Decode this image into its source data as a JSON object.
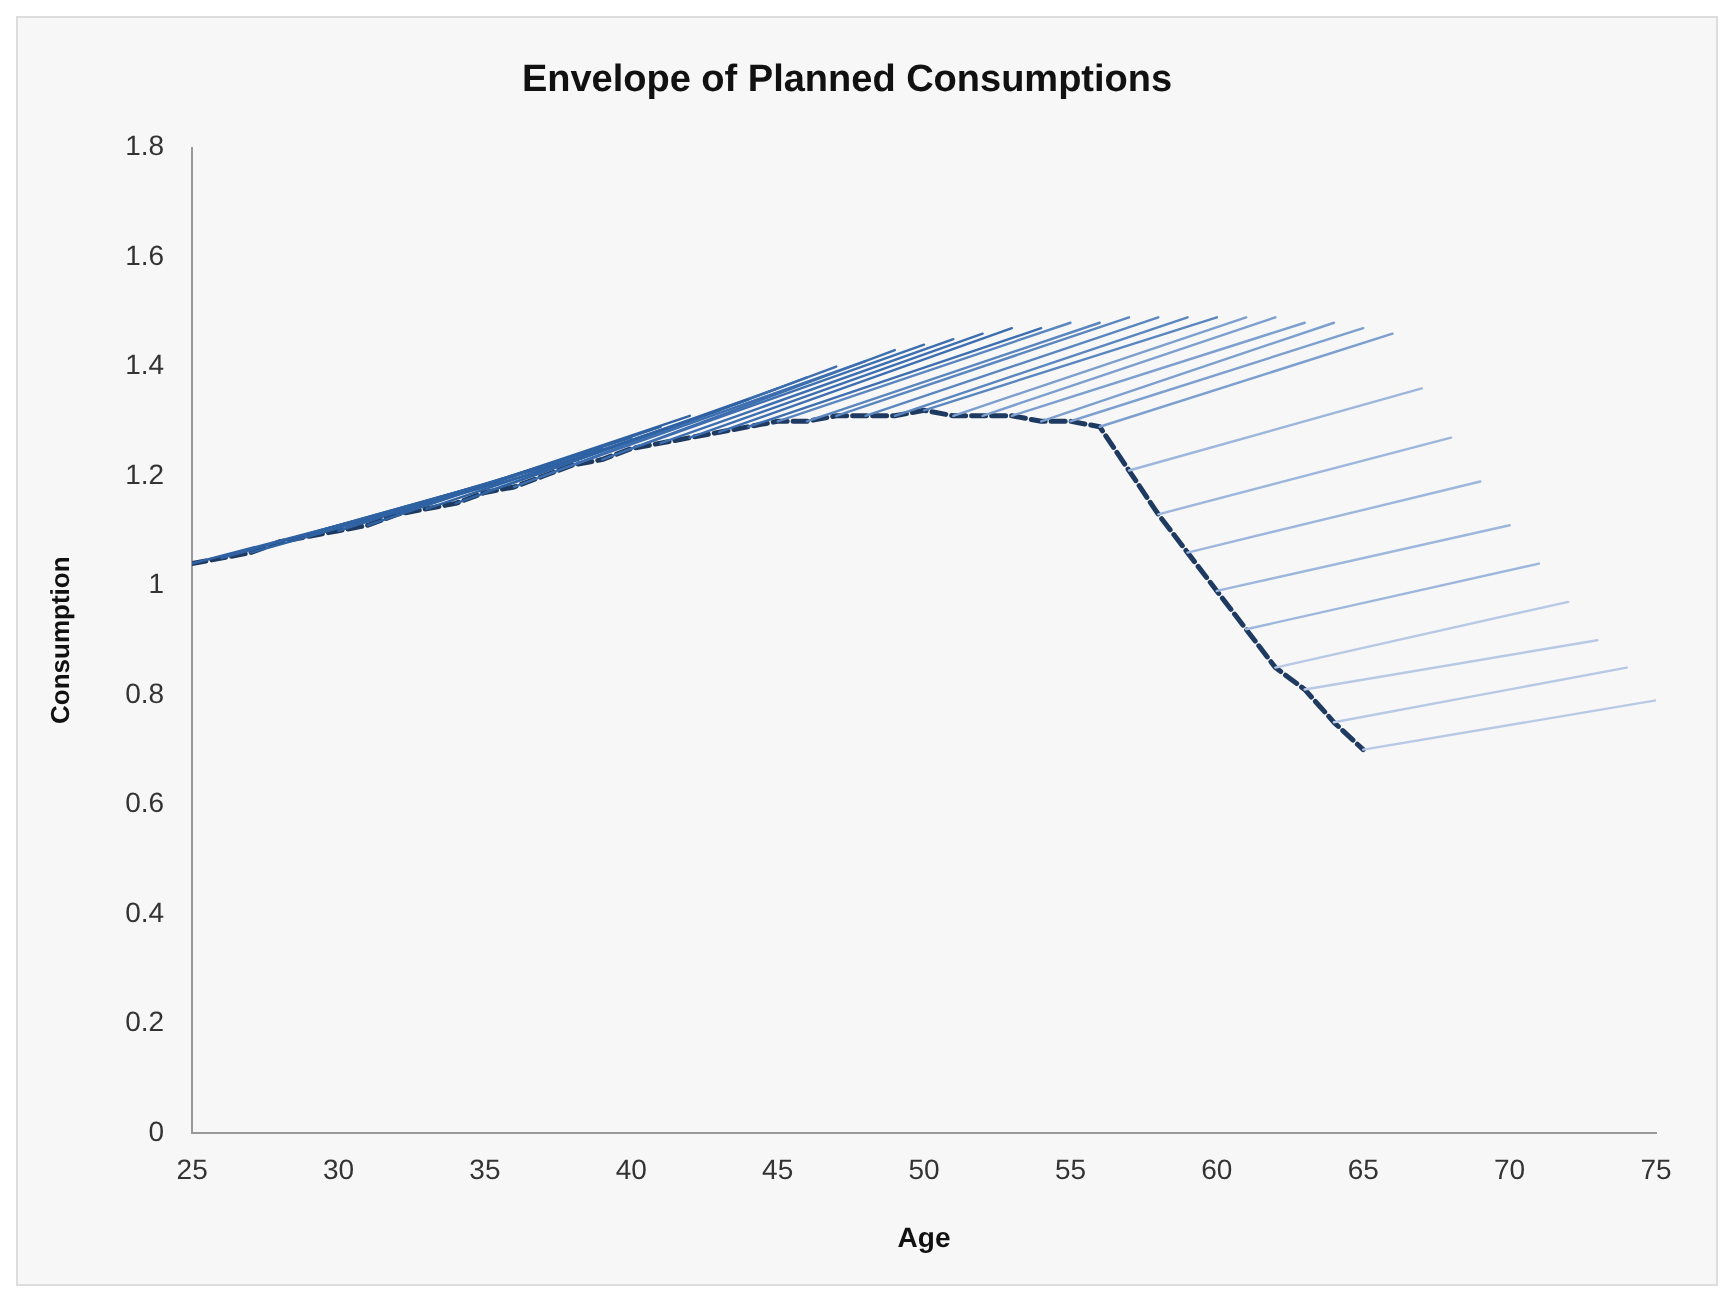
{
  "chart_data": {
    "type": "line",
    "title": "Envelope of Planned Consumptions",
    "xlabel": "Age",
    "ylabel": "Consumption",
    "xlim": [
      25,
      75
    ],
    "xticks": [
      25,
      30,
      35,
      40,
      45,
      50,
      55,
      60,
      65,
      70,
      75
    ],
    "ylim": [
      0,
      1.8
    ],
    "yticks": [
      0,
      0.2,
      0.4,
      0.6,
      0.8,
      1,
      1.2,
      1.4,
      1.6,
      1.8
    ],
    "grid": false,
    "legend": false,
    "marker": "none",
    "series": [
      {
        "color": "#2f62a3",
        "x": [
          25,
          35
        ],
        "values": [
          1.04,
          1.18
        ]
      },
      {
        "color": "#2f62a3",
        "x": [
          26,
          36
        ],
        "values": [
          1.05,
          1.2
        ]
      },
      {
        "color": "#2f62a3",
        "x": [
          27,
          37
        ],
        "values": [
          1.06,
          1.21
        ]
      },
      {
        "color": "#2f62a3",
        "x": [
          28,
          38
        ],
        "values": [
          1.08,
          1.23
        ]
      },
      {
        "color": "#2f62a3",
        "x": [
          29,
          39
        ],
        "values": [
          1.09,
          1.25
        ]
      },
      {
        "color": "#2f62a3",
        "x": [
          30,
          40
        ],
        "values": [
          1.1,
          1.27
        ]
      },
      {
        "color": "#2f62a3",
        "x": [
          31,
          41
        ],
        "values": [
          1.11,
          1.29
        ]
      },
      {
        "color": "#2f62a3",
        "x": [
          32,
          42
        ],
        "values": [
          1.13,
          1.31
        ]
      },
      {
        "color": "#2f62a3",
        "x": [
          33,
          43
        ],
        "values": [
          1.14,
          1.32
        ]
      },
      {
        "color": "#2f62a3",
        "x": [
          34,
          44
        ],
        "values": [
          1.15,
          1.34
        ]
      },
      {
        "color": "#3d6fb0",
        "x": [
          35,
          45
        ],
        "values": [
          1.17,
          1.36
        ]
      },
      {
        "color": "#3d6fb0",
        "x": [
          36,
          46
        ],
        "values": [
          1.18,
          1.38
        ]
      },
      {
        "color": "#3d6fb0",
        "x": [
          37,
          47
        ],
        "values": [
          1.2,
          1.4
        ]
      },
      {
        "color": "#3d6fb0",
        "x": [
          38,
          48
        ],
        "values": [
          1.22,
          1.41
        ]
      },
      {
        "color": "#3d6fb0",
        "x": [
          39,
          49
        ],
        "values": [
          1.23,
          1.43
        ]
      },
      {
        "color": "#3d6fb0",
        "x": [
          40,
          50
        ],
        "values": [
          1.25,
          1.44
        ]
      },
      {
        "color": "#3d6fb0",
        "x": [
          41,
          51
        ],
        "values": [
          1.26,
          1.45
        ]
      },
      {
        "color": "#3d6fb0",
        "x": [
          42,
          52
        ],
        "values": [
          1.27,
          1.46
        ]
      },
      {
        "color": "#3d6fb0",
        "x": [
          43,
          53
        ],
        "values": [
          1.28,
          1.47
        ]
      },
      {
        "color": "#3d6fb0",
        "x": [
          44,
          54
        ],
        "values": [
          1.29,
          1.47
        ]
      },
      {
        "color": "#5a86c0",
        "x": [
          45,
          55
        ],
        "values": [
          1.3,
          1.48
        ]
      },
      {
        "color": "#5a86c0",
        "x": [
          46,
          56
        ],
        "values": [
          1.3,
          1.48
        ]
      },
      {
        "color": "#5a86c0",
        "x": [
          47,
          57
        ],
        "values": [
          1.31,
          1.49
        ]
      },
      {
        "color": "#5a86c0",
        "x": [
          48,
          58
        ],
        "values": [
          1.31,
          1.49
        ]
      },
      {
        "color": "#5a86c0",
        "x": [
          49,
          59
        ],
        "values": [
          1.31,
          1.49
        ]
      },
      {
        "color": "#5a86c0",
        "x": [
          50,
          60
        ],
        "values": [
          1.32,
          1.49
        ]
      },
      {
        "color": "#7c9fcf",
        "x": [
          51,
          61
        ],
        "values": [
          1.31,
          1.49
        ]
      },
      {
        "color": "#7c9fcf",
        "x": [
          52,
          62
        ],
        "values": [
          1.31,
          1.49
        ]
      },
      {
        "color": "#7c9fcf",
        "x": [
          53,
          63
        ],
        "values": [
          1.31,
          1.48
        ]
      },
      {
        "color": "#7c9fcf",
        "x": [
          54,
          64
        ],
        "values": [
          1.3,
          1.48
        ]
      },
      {
        "color": "#7c9fcf",
        "x": [
          55,
          65
        ],
        "values": [
          1.3,
          1.47
        ]
      },
      {
        "color": "#7c9fcf",
        "x": [
          56,
          66
        ],
        "values": [
          1.29,
          1.46
        ]
      },
      {
        "color": "#9db6dc",
        "x": [
          57,
          67
        ],
        "values": [
          1.21,
          1.36
        ]
      },
      {
        "color": "#9db6dc",
        "x": [
          58,
          68
        ],
        "values": [
          1.13,
          1.27
        ]
      },
      {
        "color": "#9db6dc",
        "x": [
          59,
          69
        ],
        "values": [
          1.06,
          1.19
        ]
      },
      {
        "color": "#9db6dc",
        "x": [
          60,
          70
        ],
        "values": [
          0.99,
          1.11
        ]
      },
      {
        "color": "#9db6dc",
        "x": [
          61,
          71
        ],
        "values": [
          0.92,
          1.04
        ]
      },
      {
        "color": "#b7c9e5",
        "x": [
          62,
          72
        ],
        "values": [
          0.85,
          0.97
        ]
      },
      {
        "color": "#b7c9e5",
        "x": [
          63,
          73
        ],
        "values": [
          0.81,
          0.9
        ]
      },
      {
        "color": "#b7c9e5",
        "x": [
          64,
          74
        ],
        "values": [
          0.75,
          0.85
        ]
      },
      {
        "color": "#b7c9e5",
        "x": [
          65,
          75
        ],
        "values": [
          0.7,
          0.79
        ]
      },
      {
        "color": "#1f3a60",
        "line_style": "dashed",
        "x": [
          25,
          26,
          27,
          28,
          29,
          30,
          31,
          32,
          33,
          34,
          35,
          36,
          37,
          38,
          39,
          40,
          41,
          42,
          43,
          44,
          45,
          46,
          47,
          48,
          49,
          50,
          51,
          52,
          53,
          54,
          55,
          56,
          57,
          58,
          59,
          60,
          61,
          62,
          63,
          64,
          65
        ],
        "values": [
          1.04,
          1.05,
          1.06,
          1.08,
          1.09,
          1.1,
          1.11,
          1.13,
          1.14,
          1.15,
          1.17,
          1.18,
          1.2,
          1.22,
          1.23,
          1.25,
          1.26,
          1.27,
          1.28,
          1.29,
          1.3,
          1.3,
          1.31,
          1.31,
          1.31,
          1.32,
          1.31,
          1.31,
          1.31,
          1.3,
          1.3,
          1.29,
          1.21,
          1.13,
          1.06,
          0.99,
          0.92,
          0.85,
          0.81,
          0.75,
          0.7
        ]
      }
    ]
  }
}
